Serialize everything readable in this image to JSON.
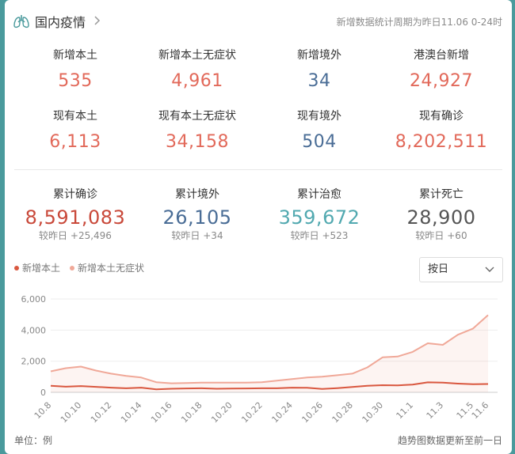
{
  "header": {
    "title": "国内疫情",
    "period": "新增数据统计周期为昨日11.06 0-24时"
  },
  "stats_row1": [
    {
      "label": "新增本土",
      "value": "535",
      "color": "#e2695a"
    },
    {
      "label": "新增本土无症状",
      "value": "4,961",
      "color": "#e2695a"
    },
    {
      "label": "新增境外",
      "value": "34",
      "color": "#4a6d96"
    },
    {
      "label": "港澳台新增",
      "value": "24,927",
      "color": "#e2695a"
    }
  ],
  "stats_row2": [
    {
      "label": "现有本土",
      "value": "6,113",
      "color": "#e2695a"
    },
    {
      "label": "现有本土无症状",
      "value": "34,158",
      "color": "#e2695a"
    },
    {
      "label": "现有境外",
      "value": "504",
      "color": "#4a6d96"
    },
    {
      "label": "现有确诊",
      "value": "8,202,511",
      "color": "#e2695a"
    }
  ],
  "stats_row3": [
    {
      "label": "累计确诊",
      "value": "8,591,083",
      "change_prefix": "较昨日",
      "change": "+25,496",
      "color": "#c9493a"
    },
    {
      "label": "累计境外",
      "value": "26,105",
      "change_prefix": "较昨日",
      "change": "+34",
      "color": "#4a6d96"
    },
    {
      "label": "累计治愈",
      "value": "359,672",
      "change_prefix": "较昨日",
      "change": "+523",
      "color": "#52a9b0"
    },
    {
      "label": "累计死亡",
      "value": "28,900",
      "change_prefix": "较昨日",
      "change": "+60",
      "color": "#555555"
    }
  ],
  "legend": {
    "items": [
      {
        "label": "新增本土",
        "color": "#d9573f"
      },
      {
        "label": "新增本土无症状",
        "color": "#f0a898"
      }
    ]
  },
  "select": {
    "value": "按日"
  },
  "footer": {
    "unit": "单位：例",
    "note": "趋势图数据更新至前一日"
  },
  "chart_data": {
    "type": "area",
    "x": [
      "10.8",
      "10.9",
      "10.10",
      "10.11",
      "10.12",
      "10.13",
      "10.14",
      "10.15",
      "10.16",
      "10.17",
      "10.18",
      "10.19",
      "10.20",
      "10.21",
      "10.22",
      "10.23",
      "10.24",
      "10.25",
      "10.26",
      "10.27",
      "10.28",
      "10.29",
      "10.30",
      "10.31",
      "11.1",
      "11.2",
      "11.3",
      "11.4",
      "11.5",
      "11.6"
    ],
    "xticks": [
      "10.8",
      "10.10",
      "10.12",
      "10.14",
      "10.16",
      "10.18",
      "10.20",
      "10.22",
      "10.24",
      "10.26",
      "10.28",
      "10.30",
      "11.1",
      "11.3",
      "11.5",
      "11.6"
    ],
    "series": [
      {
        "name": "新增本土",
        "color": "#d9573f",
        "values": [
          420,
          360,
          400,
          350,
          300,
          260,
          300,
          190,
          230,
          250,
          260,
          230,
          240,
          250,
          260,
          260,
          300,
          290,
          220,
          270,
          340,
          420,
          460,
          450,
          500,
          640,
          620,
          560,
          520,
          535
        ]
      },
      {
        "name": "新增本土无症状",
        "color": "#f0a898",
        "values": [
          1350,
          1550,
          1650,
          1400,
          1200,
          1050,
          950,
          650,
          580,
          600,
          620,
          620,
          620,
          620,
          650,
          750,
          850,
          950,
          1000,
          1100,
          1200,
          1600,
          2250,
          2300,
          2600,
          3150,
          3050,
          3700,
          4100,
          4961
        ]
      }
    ],
    "ylim": [
      0,
      6000
    ],
    "yticks": [
      0,
      2000,
      4000,
      6000
    ],
    "ytick_labels": [
      "0",
      "2,000",
      "4,000",
      "6,000"
    ],
    "grid": true
  }
}
